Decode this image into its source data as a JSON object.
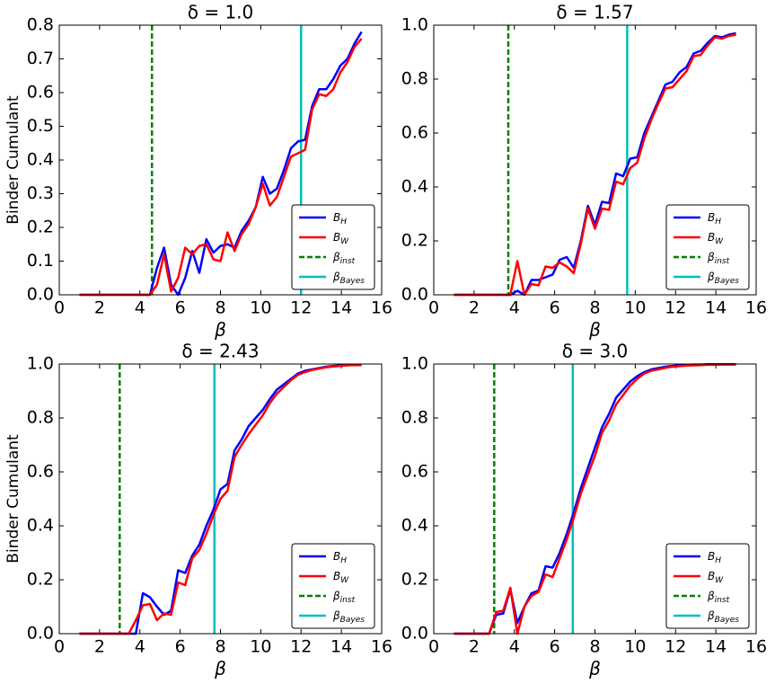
{
  "chart_data": [
    {
      "type": "line",
      "title": "δ = 1.0",
      "xlabel": "β",
      "ylabel": "Binder Cumulant",
      "x": [
        1.0,
        1.35,
        1.7,
        2.05,
        2.4,
        2.75,
        3.1,
        3.45,
        3.8,
        4.15,
        4.5,
        4.85,
        5.2,
        5.55,
        5.9,
        6.25,
        6.6,
        6.95,
        7.3,
        7.65,
        8.0,
        8.35,
        8.7,
        9.05,
        9.4,
        9.75,
        10.1,
        10.45,
        10.8,
        11.15,
        11.5,
        11.85,
        12.2,
        12.55,
        12.9,
        13.25,
        13.6,
        13.95,
        14.3,
        14.65,
        15.0
      ],
      "series": [
        {
          "name": "B_H",
          "color": "#0000ff",
          "values": [
            0,
            0,
            0,
            0,
            0,
            0,
            0,
            0,
            0,
            0,
            0,
            0.08,
            0.14,
            0.03,
            0,
            0.05,
            0.13,
            0.065,
            0.165,
            0.125,
            0.145,
            0.15,
            0.14,
            0.19,
            0.22,
            0.26,
            0.35,
            0.3,
            0.315,
            0.37,
            0.435,
            0.455,
            0.46,
            0.56,
            0.61,
            0.61,
            0.64,
            0.68,
            0.7,
            0.745,
            0.78
          ]
        },
        {
          "name": "B_W",
          "color": "#ff0000",
          "values": [
            0,
            0,
            0,
            0,
            0,
            0,
            0,
            0,
            0,
            0,
            0,
            0.03,
            0.12,
            0.01,
            0.05,
            0.14,
            0.12,
            0.145,
            0.15,
            0.105,
            0.1,
            0.185,
            0.13,
            0.18,
            0.21,
            0.26,
            0.33,
            0.265,
            0.29,
            0.35,
            0.41,
            0.42,
            0.43,
            0.55,
            0.595,
            0.59,
            0.61,
            0.66,
            0.69,
            0.735,
            0.76
          ]
        }
      ],
      "vlines": [
        {
          "name": "β_inst",
          "color": "#008000",
          "style": "dashed",
          "x": 4.6
        },
        {
          "name": "β_Bayes",
          "color": "#00bfbf",
          "style": "solid",
          "x": 12.0
        }
      ],
      "xlim": [
        0,
        16
      ],
      "xticks": [
        0,
        2,
        4,
        6,
        8,
        10,
        12,
        14,
        16
      ],
      "ylim": [
        0,
        0.8
      ],
      "yticks": [
        {
          "value": 0,
          "label": "0.0"
        },
        0.1,
        0.2,
        0.3,
        0.4,
        0.5,
        0.6,
        0.7,
        0.8
      ],
      "legend": "lower right"
    },
    {
      "type": "line",
      "title": "δ = 1.57",
      "xlabel": "β",
      "x": [
        1.0,
        1.35,
        1.7,
        2.05,
        2.4,
        2.75,
        3.1,
        3.45,
        3.8,
        4.15,
        4.5,
        4.85,
        5.2,
        5.55,
        5.9,
        6.25,
        6.6,
        6.95,
        7.3,
        7.65,
        8.0,
        8.35,
        8.7,
        9.05,
        9.4,
        9.75,
        10.1,
        10.45,
        10.8,
        11.15,
        11.5,
        11.85,
        12.2,
        12.55,
        12.9,
        13.25,
        13.6,
        13.95,
        14.3,
        14.65,
        15.0
      ],
      "series": [
        {
          "name": "B_H",
          "color": "#0000ff",
          "values": [
            0,
            0,
            0,
            0,
            0,
            0,
            0,
            0,
            0,
            0.015,
            0,
            0.055,
            0.055,
            0.065,
            0.075,
            0.13,
            0.14,
            0.1,
            0.2,
            0.33,
            0.26,
            0.345,
            0.34,
            0.45,
            0.44,
            0.505,
            0.51,
            0.6,
            0.66,
            0.72,
            0.78,
            0.79,
            0.825,
            0.845,
            0.895,
            0.905,
            0.935,
            0.96,
            0.955,
            0.965,
            0.97
          ]
        },
        {
          "name": "B_W",
          "color": "#ff0000",
          "values": [
            0,
            0,
            0,
            0,
            0,
            0,
            0,
            0,
            0,
            0.125,
            0,
            0.04,
            0.035,
            0.105,
            0.1,
            0.12,
            0.105,
            0.08,
            0.19,
            0.32,
            0.245,
            0.32,
            0.315,
            0.42,
            0.41,
            0.47,
            0.49,
            0.58,
            0.65,
            0.71,
            0.765,
            0.77,
            0.8,
            0.83,
            0.885,
            0.89,
            0.925,
            0.955,
            0.95,
            0.96,
            0.965
          ]
        }
      ],
      "vlines": [
        {
          "name": "β_inst",
          "color": "#008000",
          "style": "dashed",
          "x": 3.7
        },
        {
          "name": "β_Bayes",
          "color": "#00bfbf",
          "style": "solid",
          "x": 9.6
        }
      ],
      "xlim": [
        0,
        16
      ],
      "xticks": [
        0,
        2,
        4,
        6,
        8,
        10,
        12,
        14,
        16
      ],
      "ylim": [
        0,
        1
      ],
      "yticks": [
        {
          "value": 0,
          "label": "0.0"
        },
        0.2,
        0.4,
        0.6,
        0.8,
        {
          "value": 1,
          "label": "1.0"
        }
      ],
      "legend": "lower right"
    },
    {
      "type": "line",
      "title": "δ = 2.43",
      "xlabel": "β",
      "ylabel": "Binder Cumulant",
      "x": [
        1.0,
        1.35,
        1.7,
        2.05,
        2.4,
        2.75,
        3.1,
        3.45,
        3.8,
        4.15,
        4.5,
        4.85,
        5.2,
        5.55,
        5.9,
        6.25,
        6.6,
        6.95,
        7.3,
        7.65,
        8.0,
        8.35,
        8.7,
        9.05,
        9.4,
        9.75,
        10.1,
        10.45,
        10.8,
        11.15,
        11.5,
        11.85,
        12.2,
        12.55,
        12.9,
        13.25,
        13.6,
        13.95,
        14.3,
        14.65,
        15.0
      ],
      "series": [
        {
          "name": "B_H",
          "color": "#0000ff",
          "values": [
            0,
            0,
            0,
            0,
            0,
            0,
            0,
            0,
            0,
            0.15,
            0.135,
            0.1,
            0.07,
            0.085,
            0.235,
            0.225,
            0.29,
            0.33,
            0.4,
            0.46,
            0.535,
            0.555,
            0.68,
            0.72,
            0.77,
            0.8,
            0.83,
            0.87,
            0.905,
            0.925,
            0.945,
            0.965,
            0.975,
            0.98,
            0.985,
            0.99,
            0.993,
            0.995,
            0.996,
            0.997,
            0.997
          ]
        },
        {
          "name": "B_W",
          "color": "#ff0000",
          "values": [
            0,
            0,
            0,
            0,
            0,
            0,
            0,
            0,
            0.05,
            0.105,
            0.11,
            0.05,
            0.075,
            0.07,
            0.19,
            0.18,
            0.28,
            0.31,
            0.37,
            0.44,
            0.5,
            0.53,
            0.655,
            0.7,
            0.74,
            0.775,
            0.81,
            0.855,
            0.89,
            0.915,
            0.94,
            0.96,
            0.97,
            0.978,
            0.983,
            0.988,
            0.991,
            0.993,
            0.995,
            0.996,
            0.996
          ]
        }
      ],
      "vlines": [
        {
          "name": "β_inst",
          "color": "#008000",
          "style": "dashed",
          "x": 3.0
        },
        {
          "name": "β_Bayes",
          "color": "#00bfbf",
          "style": "solid",
          "x": 7.7
        }
      ],
      "xlim": [
        0,
        16
      ],
      "xticks": [
        0,
        2,
        4,
        6,
        8,
        10,
        12,
        14,
        16
      ],
      "ylim": [
        0,
        1
      ],
      "yticks": [
        {
          "value": 0,
          "label": "0.0"
        },
        0.2,
        0.4,
        0.6,
        0.8,
        {
          "value": 1,
          "label": "1.0"
        }
      ],
      "legend": "lower right"
    },
    {
      "type": "line",
      "title": "δ = 3.0",
      "xlabel": "β",
      "x": [
        1.0,
        1.35,
        1.7,
        2.05,
        2.4,
        2.75,
        3.1,
        3.45,
        3.8,
        4.15,
        4.5,
        4.85,
        5.2,
        5.55,
        5.9,
        6.25,
        6.6,
        6.95,
        7.3,
        7.65,
        8.0,
        8.35,
        8.7,
        9.05,
        9.4,
        9.75,
        10.1,
        10.45,
        10.8,
        11.15,
        11.5,
        11.85,
        12.2,
        12.55,
        12.9,
        13.25,
        13.6,
        13.95,
        14.3,
        14.65,
        15.0
      ],
      "series": [
        {
          "name": "B_H",
          "color": "#0000ff",
          "values": [
            0,
            0,
            0,
            0,
            0,
            0,
            0.07,
            0.075,
            0.165,
            0.04,
            0.1,
            0.15,
            0.16,
            0.25,
            0.245,
            0.3,
            0.37,
            0.45,
            0.54,
            0.615,
            0.69,
            0.765,
            0.815,
            0.875,
            0.905,
            0.935,
            0.955,
            0.97,
            0.98,
            0.985,
            0.99,
            0.993,
            0.995,
            0.997,
            0.998,
            0.998,
            0.999,
            0.999,
            0.999,
            0.999,
            0.999
          ]
        },
        {
          "name": "B_W",
          "color": "#ff0000",
          "values": [
            0,
            0,
            0,
            0,
            0,
            0,
            0.08,
            0.085,
            0.17,
            0,
            0.1,
            0.14,
            0.155,
            0.22,
            0.21,
            0.28,
            0.35,
            0.43,
            0.52,
            0.59,
            0.66,
            0.745,
            0.79,
            0.85,
            0.885,
            0.92,
            0.945,
            0.965,
            0.975,
            0.98,
            0.986,
            0.99,
            0.992,
            0.994,
            0.995,
            0.996,
            0.997,
            0.997,
            0.998,
            0.998,
            0.998
          ]
        }
      ],
      "vlines": [
        {
          "name": "β_inst",
          "color": "#008000",
          "style": "dashed",
          "x": 3.0
        },
        {
          "name": "β_Bayes",
          "color": "#00bfbf",
          "style": "solid",
          "x": 6.9
        }
      ],
      "xlim": [
        0,
        16
      ],
      "xticks": [
        0,
        2,
        4,
        6,
        8,
        10,
        12,
        14,
        16
      ],
      "ylim": [
        0,
        1
      ],
      "yticks": [
        {
          "value": 0,
          "label": "0.0"
        },
        0.2,
        0.4,
        0.6,
        0.8,
        {
          "value": 1,
          "label": "1.0"
        }
      ],
      "legend": "lower right"
    }
  ]
}
